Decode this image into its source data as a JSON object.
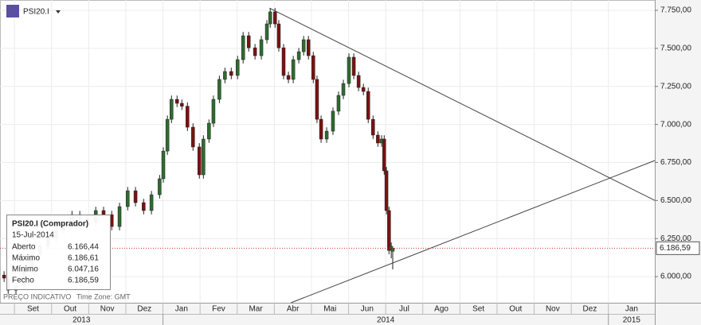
{
  "header": {
    "symbol": "PSI20.I"
  },
  "footer": {
    "note": "PREÇO INDICATIVO",
    "timezone": "Time Zone: GMT"
  },
  "tooltip": {
    "title": "PSI20.I (Comprador)",
    "date": "15-Jul-2014",
    "rows": [
      {
        "label": "Aberto",
        "value": "6.166,44"
      },
      {
        "label": "Máximo",
        "value": "6.186,61"
      },
      {
        "label": "Mínimo",
        "value": "6.047,16"
      },
      {
        "label": "Fecho",
        "value": "6.186,59"
      }
    ]
  },
  "chart_data": {
    "type": "candlestick",
    "xlim": [
      -0.39,
      17.25
    ],
    "xticks": [
      {
        "value": 0,
        "label": "Set"
      },
      {
        "value": 1,
        "label": "Out"
      },
      {
        "value": 2,
        "label": "Nov"
      },
      {
        "value": 3,
        "label": "Dez"
      },
      {
        "value": 4,
        "label": "Jan"
      },
      {
        "value": 5,
        "label": "Fev"
      },
      {
        "value": 6,
        "label": "Mar"
      },
      {
        "value": 7,
        "label": "Abr"
      },
      {
        "value": 8,
        "label": "Mai"
      },
      {
        "value": 9,
        "label": "Jun"
      },
      {
        "value": 10,
        "label": "Jul"
      },
      {
        "value": 11,
        "label": "Ago"
      },
      {
        "value": 12,
        "label": "Set"
      },
      {
        "value": 13,
        "label": "Out"
      },
      {
        "value": 14,
        "label": "Nov"
      },
      {
        "value": 15,
        "label": "Dez"
      },
      {
        "value": 16,
        "label": "Jan"
      }
    ],
    "year_ticks": [
      {
        "value": -8,
        "label": "2013"
      },
      {
        "value": 4,
        "label": "2014"
      },
      {
        "value": 16,
        "label": "2015"
      }
    ],
    "ylim": [
      5828,
      7818
    ],
    "yticks": [
      {
        "value": 6000,
        "label": "6.000,00"
      },
      {
        "value": 6250,
        "label": "6.250,00"
      },
      {
        "value": 6500,
        "label": "6.500,00"
      },
      {
        "value": 6750,
        "label": "6.750,00"
      },
      {
        "value": 7000,
        "label": "7.000,00"
      },
      {
        "value": 7250,
        "label": "7.250,00"
      },
      {
        "value": 7500,
        "label": "7.500,00"
      },
      {
        "value": 7750,
        "label": "7.750,00"
      }
    ],
    "grid": true,
    "up_color": "#2f6b2f",
    "down_color": "#7a1212",
    "x": [
      -0.28,
      -0.17,
      0.04,
      0.26,
      0.47,
      0.69,
      0.9,
      1.12,
      1.33,
      1.55,
      1.76,
      1.97,
      2.19,
      2.4,
      2.62,
      2.83,
      3.05,
      3.26,
      3.48,
      3.69,
      3.91,
      4.01,
      4.12,
      4.23,
      4.38,
      4.51,
      4.66,
      4.81,
      4.98,
      5.09,
      5.24,
      5.36,
      5.52,
      5.67,
      5.84,
      6.01,
      6.16,
      6.31,
      6.48,
      6.65,
      6.8,
      6.89,
      7.02,
      7.12,
      7.25,
      7.38,
      7.51,
      7.66,
      7.79,
      7.92,
      8.05,
      8.15,
      8.26,
      8.41,
      8.58,
      8.73,
      8.86,
      9.01,
      9.14,
      9.27,
      9.4,
      9.53,
      9.66,
      9.79,
      9.89,
      9.96,
      10.02,
      10.09,
      10.15,
      10.19
    ],
    "open": [
      6010,
      5990,
      5911,
      5937,
      6042,
      6146,
      6199,
      6251,
      6303,
      6329,
      6407,
      6381,
      6355,
      6434,
      6407,
      6329,
      6460,
      6564,
      6486,
      6434,
      6538,
      6643,
      6825,
      7034,
      7165,
      7139,
      7120,
      6982,
      6852,
      6669,
      6904,
      7008,
      7165,
      7296,
      7348,
      7322,
      7426,
      7583,
      7504,
      7452,
      7557,
      7661,
      7740,
      7661,
      7504,
      7322,
      7296,
      7426,
      7478,
      7557,
      7452,
      7296,
      7034,
      6904,
      6956,
      7087,
      7191,
      7269,
      7442,
      7322,
      7243,
      7217,
      7034,
      6930,
      6878,
      6904,
      6695,
      6434,
      6172,
      6166.44
    ],
    "high": [
      6035,
      6015,
      5962,
      6067,
      6171,
      6224,
      6276,
      6328,
      6354,
      6432,
      6432,
      6406,
      6459,
      6459,
      6432,
      6485,
      6589,
      6589,
      6511,
      6563,
      6668,
      6850,
      7059,
      7190,
      7190,
      7164,
      7145,
      7007,
      6877,
      6929,
      7033,
      7190,
      7321,
      7373,
      7373,
      7451,
      7608,
      7608,
      7529,
      7582,
      7686,
      7765,
      7765,
      7686,
      7529,
      7347,
      7451,
      7503,
      7582,
      7582,
      7477,
      7321,
      7059,
      6981,
      7112,
      7216,
      7294,
      7467,
      7467,
      7347,
      7268,
      7242,
      7059,
      6955,
      6929,
      6929,
      6720,
      6459,
      6224,
      6186.61
    ],
    "low": [
      5965,
      5886,
      5886,
      5912,
      6017,
      6121,
      6174,
      6226,
      6278,
      6304,
      6356,
      6330,
      6330,
      6382,
      6304,
      6304,
      6435,
      6461,
      6409,
      6409,
      6513,
      6618,
      6800,
      7009,
      7114,
      7095,
      6957,
      6827,
      6644,
      6644,
      6879,
      6983,
      7140,
      7271,
      7297,
      7297,
      7401,
      7479,
      7427,
      7427,
      7532,
      7636,
      7636,
      7479,
      7297,
      7271,
      7271,
      7401,
      7453,
      7427,
      7271,
      7009,
      6879,
      6879,
      6931,
      7062,
      7166,
      7244,
      7297,
      7218,
      7192,
      7009,
      6905,
      6853,
      6853,
      6670,
      6409,
      6147,
      6120,
      6047.16
    ],
    "close": [
      5990,
      5911,
      5937,
      6042,
      6146,
      6199,
      6251,
      6303,
      6329,
      6407,
      6381,
      6355,
      6434,
      6407,
      6329,
      6460,
      6564,
      6486,
      6434,
      6538,
      6643,
      6825,
      7034,
      7165,
      7139,
      7120,
      6982,
      6852,
      6669,
      6904,
      7008,
      7165,
      7296,
      7348,
      7322,
      7426,
      7583,
      7504,
      7452,
      7557,
      7661,
      7740,
      7661,
      7504,
      7322,
      7296,
      7426,
      7478,
      7557,
      7452,
      7296,
      7034,
      6904,
      6956,
      7087,
      7191,
      7269,
      7442,
      7322,
      7243,
      7217,
      7034,
      6930,
      6878,
      6904,
      6695,
      6434,
      6172,
      6199,
      6186.59
    ],
    "trendlines": [
      {
        "x": [
          6.87,
          17.25
        ],
        "values": [
          7765,
          6501
        ]
      },
      {
        "x": [
          7.45,
          17.25
        ],
        "values": [
          5828,
          6763
        ]
      }
    ],
    "last_price": {
      "value": 6186.59,
      "label": "6.186,59"
    }
  }
}
